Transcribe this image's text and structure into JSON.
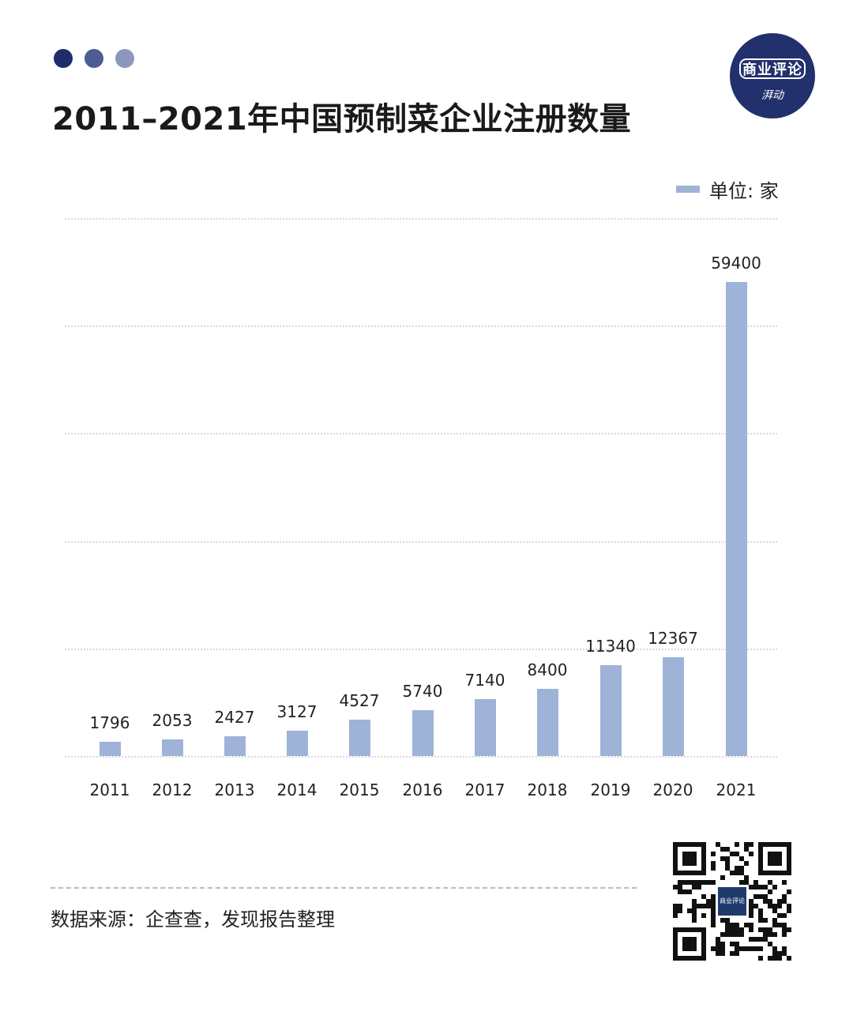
{
  "header": {
    "dots": [
      {
        "color": "#1f2d6b"
      },
      {
        "color": "#4d5c95"
      },
      {
        "color": "#8c97bd"
      }
    ],
    "title": "2011–2021年中国预制菜企业注册数量",
    "logo": {
      "main": "商业评论",
      "sub": "湃动",
      "bg": "#23306e"
    }
  },
  "legend": {
    "label": "单位: 家",
    "color": "#9fb3d8"
  },
  "footer": {
    "source": "数据来源：企查查，发现报告整理",
    "qr_label": "商业评论"
  },
  "chart_data": {
    "type": "bar",
    "title": "2011–2021年中国预制菜企业注册数量",
    "xlabel": "",
    "ylabel": "单位: 家",
    "categories": [
      "2011",
      "2012",
      "2013",
      "2014",
      "2015",
      "2016",
      "2017",
      "2018",
      "2019",
      "2020",
      "2021"
    ],
    "values": [
      1796,
      2053,
      2427,
      3127,
      4527,
      5740,
      7140,
      8400,
      11340,
      12367,
      59400
    ],
    "series": [
      {
        "name": "单位: 家",
        "values": [
          1796,
          2053,
          2427,
          3127,
          4527,
          5740,
          7140,
          8400,
          11340,
          12367,
          59400
        ]
      }
    ],
    "ylim": [
      0,
      68000
    ],
    "grid": true,
    "gridlines": 5,
    "legend_position": "top-right",
    "bar_color": "#9fb3d8",
    "y_tick_labels_visible": false,
    "data_labels": true
  }
}
